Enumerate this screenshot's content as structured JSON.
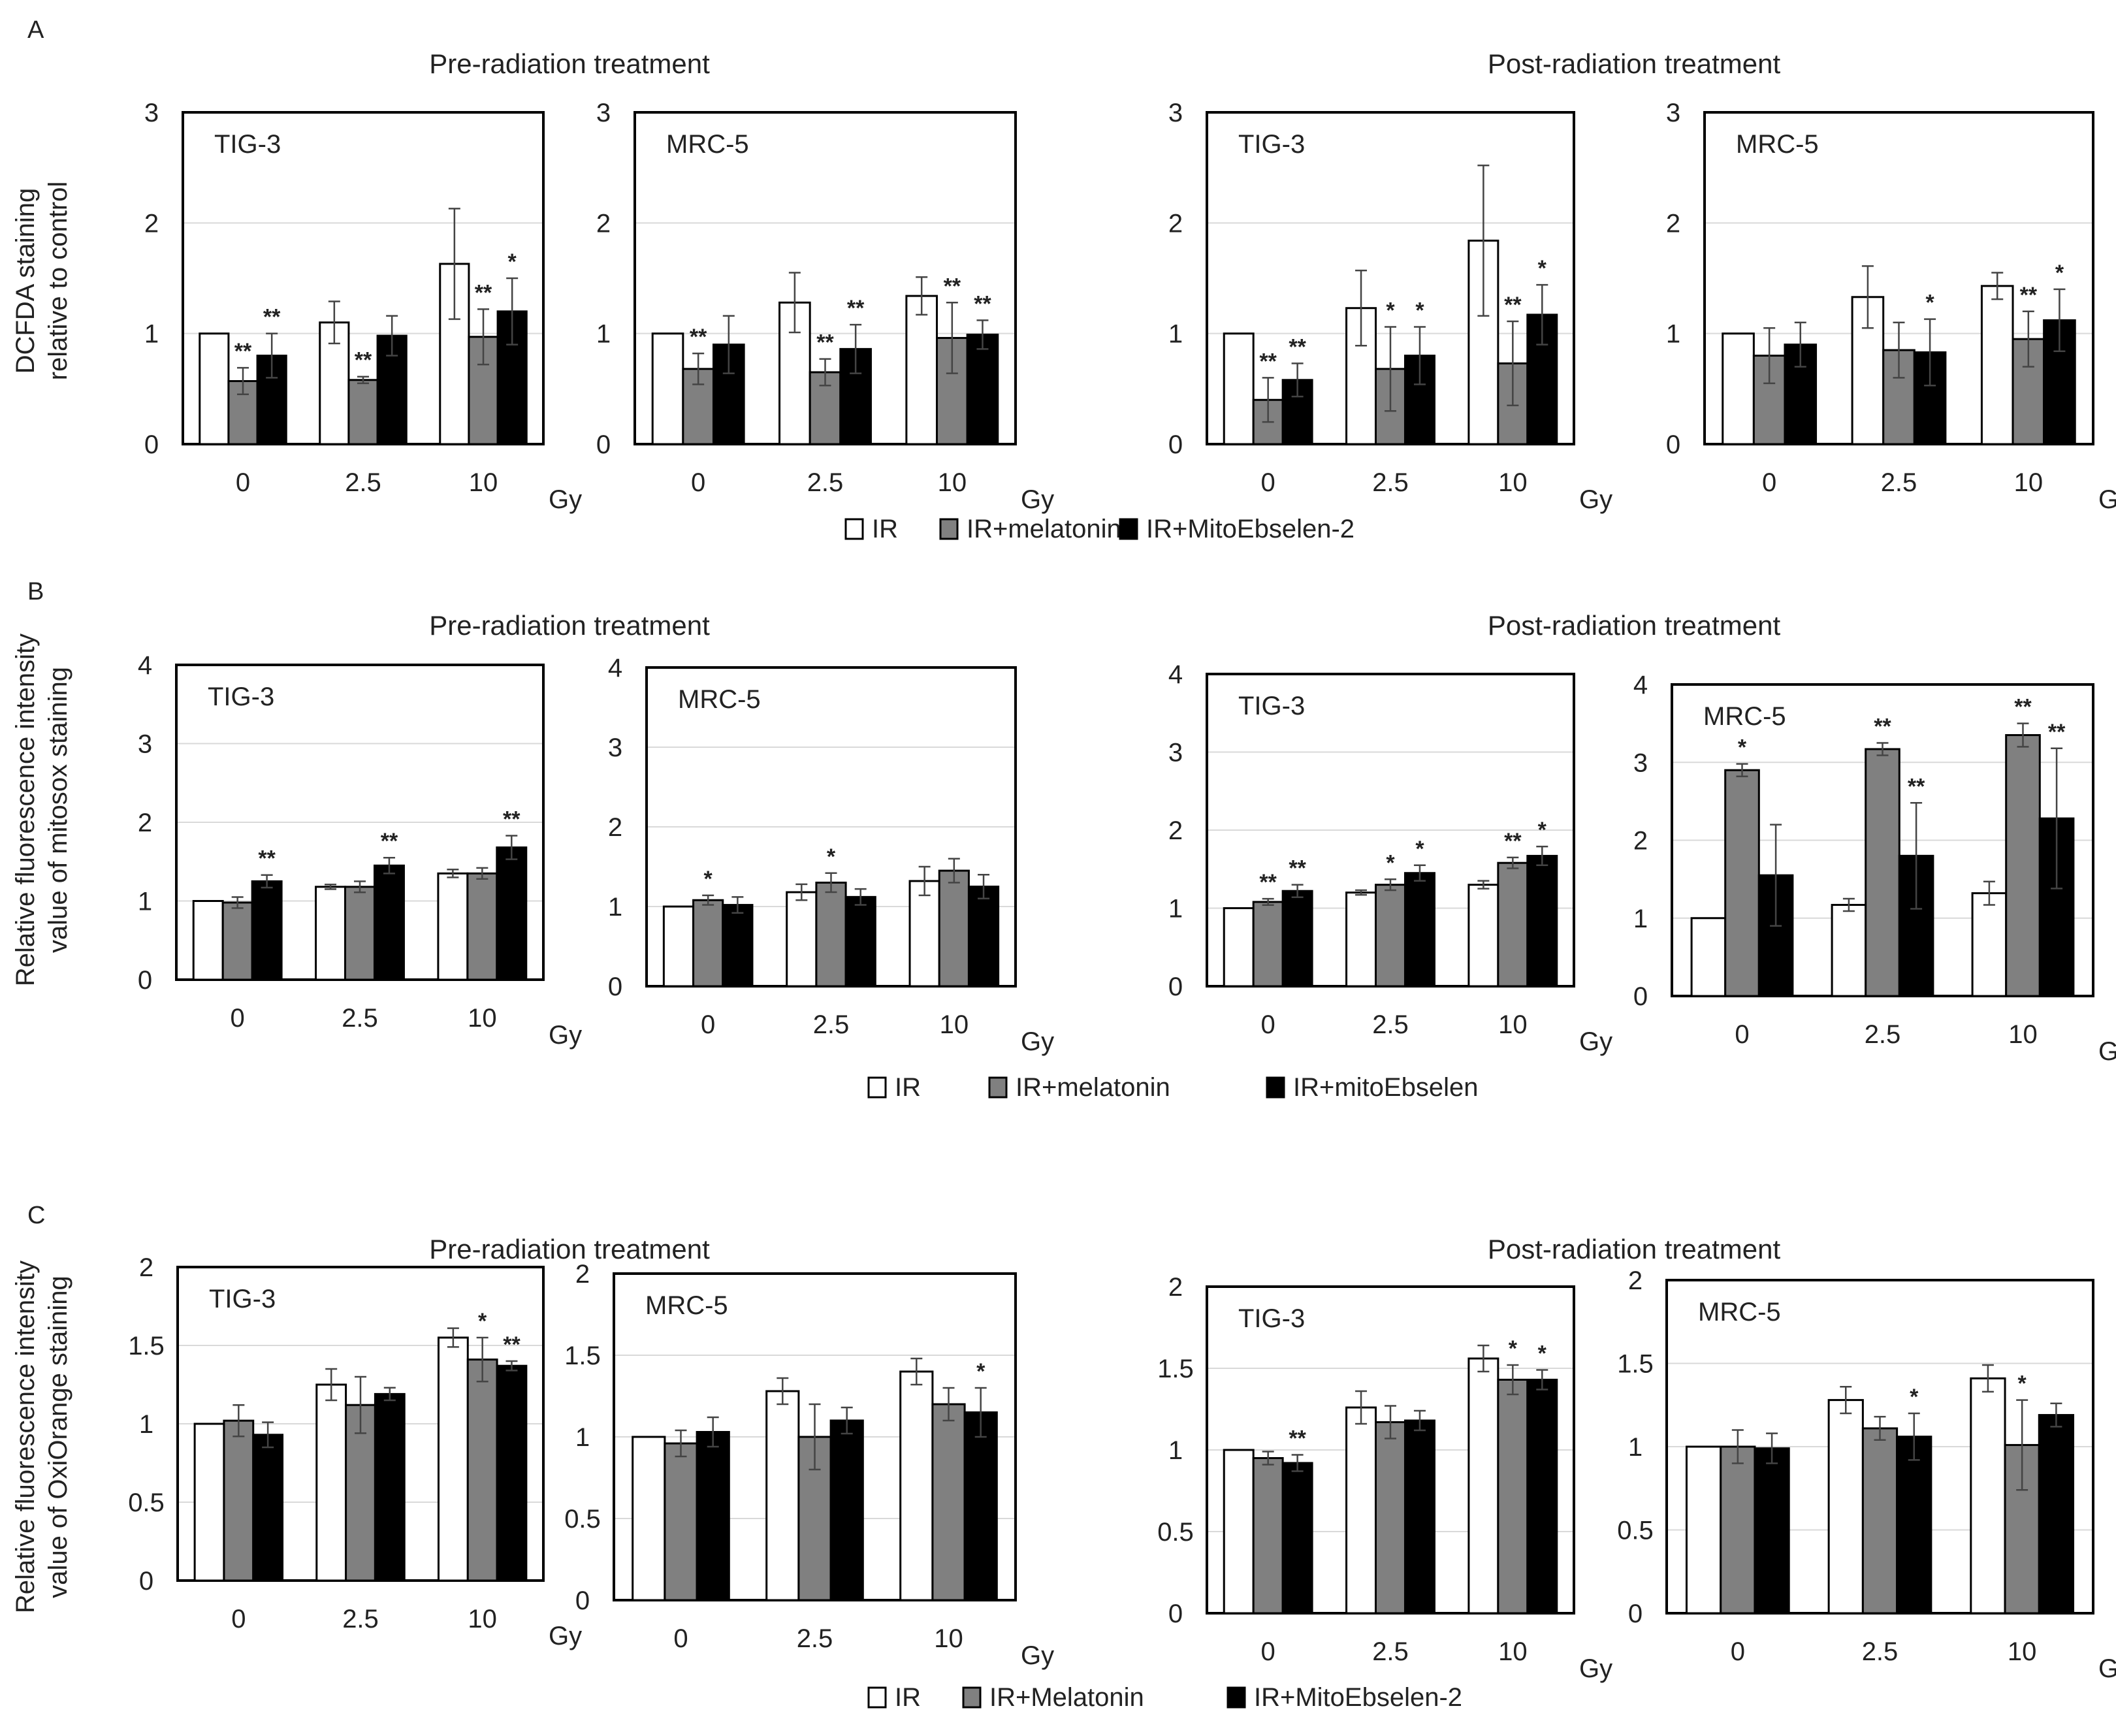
{
  "panels": [
    {
      "letter": "A",
      "ylabel": [
        "DCFDA staining",
        "relative to control"
      ],
      "legend": [
        "IR",
        "IR+melatonin",
        "IR+MitoEbselen-2"
      ],
      "section_titles": [
        "Pre-radiation treatment",
        "Post-radiation treatment"
      ]
    },
    {
      "letter": "B",
      "ylabel": [
        "Relative fluorescence intensity",
        "value of mitosox staining"
      ],
      "legend": [
        "IR",
        "IR+melatonin",
        "IR+mitoEbselen"
      ],
      "section_titles": [
        "Pre-radiation treatment",
        "Post-radiation treatment"
      ]
    },
    {
      "letter": "C",
      "ylabel": [
        "Relative fluorescence intensity",
        "value of OxiOrange staining"
      ],
      "legend": [
        "IR",
        "IR+Melatonin",
        "IR+MitoEbselen-2"
      ],
      "section_titles": [
        "Pre-radiation treatment",
        "Post-radiation treatment"
      ]
    }
  ],
  "colors": {
    "ir": "#ffffff",
    "melatonin": "#808080",
    "mito": "#000000",
    "grid": "#d9d9d9"
  },
  "x_unit": "Gy",
  "chart_data": [
    {
      "id": "A1",
      "panel": "A",
      "type": "bar",
      "title": "TIG-3",
      "section": "Pre-radiation treatment",
      "categories": [
        "0",
        "2.5",
        "10"
      ],
      "ylim": [
        0,
        3
      ],
      "yticks": [
        "0",
        "1",
        "2",
        "3"
      ],
      "series": [
        {
          "name": "IR",
          "values": [
            1.0,
            1.1,
            1.63
          ],
          "errors": [
            0,
            0.19,
            0.5
          ],
          "stars": [
            "",
            "",
            ""
          ]
        },
        {
          "name": "IR+melatonin",
          "values": [
            0.57,
            0.58,
            0.97
          ],
          "errors": [
            0.12,
            0.03,
            0.25
          ],
          "stars": [
            "**",
            "**",
            "**"
          ]
        },
        {
          "name": "IR+MitoEbselen-2",
          "values": [
            0.8,
            0.98,
            1.2
          ],
          "errors": [
            0.2,
            0.18,
            0.3
          ],
          "stars": [
            "**",
            "",
            "*"
          ]
        }
      ]
    },
    {
      "id": "A2",
      "panel": "A",
      "type": "bar",
      "title": "MRC-5",
      "section": "Pre-radiation treatment",
      "categories": [
        "0",
        "2.5",
        "10"
      ],
      "ylim": [
        0,
        3
      ],
      "yticks": [
        "0",
        "1",
        "2",
        "3"
      ],
      "series": [
        {
          "name": "IR",
          "values": [
            1.0,
            1.28,
            1.34
          ],
          "errors": [
            0,
            0.27,
            0.17
          ],
          "stars": [
            "",
            "",
            ""
          ]
        },
        {
          "name": "IR+melatonin",
          "values": [
            0.68,
            0.65,
            0.96
          ],
          "errors": [
            0.14,
            0.12,
            0.32
          ],
          "stars": [
            "**",
            "**",
            "**"
          ]
        },
        {
          "name": "IR+MitoEbselen-2",
          "values": [
            0.9,
            0.86,
            0.99
          ],
          "errors": [
            0.26,
            0.22,
            0.13
          ],
          "stars": [
            "",
            "**",
            "**"
          ]
        }
      ]
    },
    {
      "id": "A3",
      "panel": "A",
      "type": "bar",
      "title": "TIG-3",
      "section": "Post-radiation treatment",
      "categories": [
        "0",
        "2.5",
        "10"
      ],
      "ylim": [
        0,
        3
      ],
      "yticks": [
        "0",
        "1",
        "2",
        "3"
      ],
      "series": [
        {
          "name": "IR",
          "values": [
            1.0,
            1.23,
            1.84
          ],
          "errors": [
            0,
            0.34,
            0.68
          ],
          "stars": [
            "",
            "",
            ""
          ]
        },
        {
          "name": "IR+melatonin",
          "values": [
            0.4,
            0.68,
            0.73
          ],
          "errors": [
            0.2,
            0.38,
            0.38
          ],
          "stars": [
            "**",
            "*",
            "**"
          ]
        },
        {
          "name": "IR+MitoEbselen-2",
          "values": [
            0.58,
            0.8,
            1.17
          ],
          "errors": [
            0.15,
            0.26,
            0.27
          ],
          "stars": [
            "**",
            "*",
            "*"
          ]
        }
      ]
    },
    {
      "id": "A4",
      "panel": "A",
      "type": "bar",
      "title": "MRC-5",
      "section": "Post-radiation treatment",
      "categories": [
        "0",
        "2.5",
        "10"
      ],
      "ylim": [
        0,
        3
      ],
      "yticks": [
        "0",
        "1",
        "2",
        "3"
      ],
      "series": [
        {
          "name": "IR",
          "values": [
            1.0,
            1.33,
            1.43
          ],
          "errors": [
            0,
            0.28,
            0.12
          ],
          "stars": [
            "",
            "",
            ""
          ]
        },
        {
          "name": "IR+melatonin",
          "values": [
            0.8,
            0.85,
            0.95
          ],
          "errors": [
            0.25,
            0.25,
            0.25
          ],
          "stars": [
            "",
            "",
            "**"
          ]
        },
        {
          "name": "IR+MitoEbselen-2",
          "values": [
            0.9,
            0.83,
            1.12
          ],
          "errors": [
            0.2,
            0.3,
            0.28
          ],
          "stars": [
            "",
            "*",
            "*"
          ]
        }
      ]
    },
    {
      "id": "B1",
      "panel": "B",
      "type": "bar",
      "title": "TIG-3",
      "section": "Pre-radiation treatment",
      "categories": [
        "0",
        "2.5",
        "10"
      ],
      "ylim": [
        0,
        4
      ],
      "yticks": [
        "0",
        "1",
        "2",
        "3",
        "4"
      ],
      "series": [
        {
          "name": "IR",
          "values": [
            1.0,
            1.18,
            1.35
          ],
          "errors": [
            0,
            0.03,
            0.05
          ],
          "stars": [
            "",
            "",
            ""
          ]
        },
        {
          "name": "IR+melatonin",
          "values": [
            0.98,
            1.18,
            1.35
          ],
          "errors": [
            0.07,
            0.07,
            0.07
          ],
          "stars": [
            "",
            "",
            ""
          ]
        },
        {
          "name": "IR+mitoEbselen",
          "values": [
            1.25,
            1.45,
            1.68
          ],
          "errors": [
            0.08,
            0.1,
            0.15
          ],
          "stars": [
            "**",
            "**",
            "**"
          ]
        }
      ]
    },
    {
      "id": "B2",
      "panel": "B",
      "type": "bar",
      "title": "MRC-5",
      "section": "Pre-radiation treatment",
      "categories": [
        "0",
        "2.5",
        "10"
      ],
      "ylim": [
        0,
        4
      ],
      "yticks": [
        "0",
        "1",
        "2",
        "3",
        "4"
      ],
      "series": [
        {
          "name": "IR",
          "values": [
            1.0,
            1.18,
            1.32
          ],
          "errors": [
            0,
            0.1,
            0.18
          ],
          "stars": [
            "",
            "",
            ""
          ]
        },
        {
          "name": "IR+melatonin",
          "values": [
            1.08,
            1.3,
            1.45
          ],
          "errors": [
            0.06,
            0.12,
            0.15
          ],
          "stars": [
            "*",
            "*",
            ""
          ]
        },
        {
          "name": "IR+mitoEbselen",
          "values": [
            1.02,
            1.12,
            1.25
          ],
          "errors": [
            0.1,
            0.1,
            0.15
          ],
          "stars": [
            "",
            "",
            ""
          ]
        }
      ]
    },
    {
      "id": "B3",
      "panel": "B",
      "type": "bar",
      "title": "TIG-3",
      "section": "Post-radiation treatment",
      "categories": [
        "0",
        "2.5",
        "10"
      ],
      "ylim": [
        0,
        4
      ],
      "yticks": [
        "0",
        "1",
        "2",
        "3",
        "4"
      ],
      "series": [
        {
          "name": "IR",
          "values": [
            1.0,
            1.2,
            1.3
          ],
          "errors": [
            0,
            0.03,
            0.05
          ],
          "stars": [
            "",
            "",
            ""
          ]
        },
        {
          "name": "IR+melatonin",
          "values": [
            1.08,
            1.3,
            1.58
          ],
          "errors": [
            0.04,
            0.07,
            0.07
          ],
          "stars": [
            "**",
            "*",
            "**"
          ]
        },
        {
          "name": "IR+mitoEbselen",
          "values": [
            1.22,
            1.45,
            1.67
          ],
          "errors": [
            0.08,
            0.1,
            0.12
          ],
          "stars": [
            "**",
            "*",
            "*"
          ]
        }
      ]
    },
    {
      "id": "B4",
      "panel": "B",
      "type": "bar",
      "title": "MRC-5",
      "section": "Post-radiation treatment",
      "categories": [
        "0",
        "2.5",
        "10"
      ],
      "ylim": [
        0,
        4
      ],
      "yticks": [
        "0",
        "1",
        "2",
        "3",
        "4"
      ],
      "series": [
        {
          "name": "IR",
          "values": [
            1.0,
            1.17,
            1.32
          ],
          "errors": [
            0,
            0.08,
            0.15
          ],
          "stars": [
            "",
            "",
            ""
          ]
        },
        {
          "name": "IR+melatonin",
          "values": [
            2.9,
            3.17,
            3.35
          ],
          "errors": [
            0.08,
            0.08,
            0.15
          ],
          "stars": [
            "*",
            "**",
            "**"
          ]
        },
        {
          "name": "IR+mitoEbselen",
          "values": [
            1.55,
            1.8,
            2.28
          ],
          "errors": [
            0.65,
            0.68,
            0.9
          ],
          "stars": [
            "",
            "**",
            "**"
          ]
        }
      ]
    },
    {
      "id": "C1",
      "panel": "C",
      "type": "bar",
      "title": "TIG-3",
      "section": "Pre-radiation treatment",
      "categories": [
        "0",
        "2.5",
        "10"
      ],
      "ylim": [
        0,
        2
      ],
      "yticks": [
        "0",
        "0.5",
        "1",
        "1.5",
        "2"
      ],
      "series": [
        {
          "name": "IR",
          "values": [
            1.0,
            1.25,
            1.55
          ],
          "errors": [
            0,
            0.1,
            0.06
          ],
          "stars": [
            "",
            "",
            ""
          ]
        },
        {
          "name": "IR+Melatonin",
          "values": [
            1.02,
            1.12,
            1.41
          ],
          "errors": [
            0.1,
            0.18,
            0.14
          ],
          "stars": [
            "",
            "",
            "*"
          ]
        },
        {
          "name": "IR+MitoEbselen-2",
          "values": [
            0.93,
            1.19,
            1.37
          ],
          "errors": [
            0.08,
            0.04,
            0.03
          ],
          "stars": [
            "",
            "",
            "**"
          ]
        }
      ]
    },
    {
      "id": "C2",
      "panel": "C",
      "type": "bar",
      "title": "MRC-5",
      "section": "Pre-radiation treatment",
      "categories": [
        "0",
        "2.5",
        "10"
      ],
      "ylim": [
        0,
        2
      ],
      "yticks": [
        "0",
        "0.5",
        "1",
        "1.5",
        "2"
      ],
      "series": [
        {
          "name": "IR",
          "values": [
            1.0,
            1.28,
            1.4
          ],
          "errors": [
            0,
            0.08,
            0.08
          ],
          "stars": [
            "",
            "",
            ""
          ]
        },
        {
          "name": "IR+Melatonin",
          "values": [
            0.96,
            1.0,
            1.2
          ],
          "errors": [
            0.08,
            0.2,
            0.1
          ],
          "stars": [
            "",
            "",
            ""
          ]
        },
        {
          "name": "IR+MitoEbselen-2",
          "values": [
            1.03,
            1.1,
            1.15
          ],
          "errors": [
            0.09,
            0.08,
            0.15
          ],
          "stars": [
            "",
            "",
            "*"
          ]
        }
      ]
    },
    {
      "id": "C3",
      "panel": "C",
      "type": "bar",
      "title": "TIG-3",
      "section": "Post-radiation treatment",
      "categories": [
        "0",
        "2.5",
        "10"
      ],
      "ylim": [
        0,
        2
      ],
      "yticks": [
        "0",
        "0.5",
        "1",
        "1.5",
        "2"
      ],
      "series": [
        {
          "name": "IR",
          "values": [
            1.0,
            1.26,
            1.56
          ],
          "errors": [
            0,
            0.1,
            0.08
          ],
          "stars": [
            "",
            "",
            ""
          ]
        },
        {
          "name": "IR+Melatonin",
          "values": [
            0.95,
            1.17,
            1.43
          ],
          "errors": [
            0.04,
            0.1,
            0.09
          ],
          "stars": [
            "",
            "",
            "*"
          ]
        },
        {
          "name": "IR+MitoEbselen-2",
          "values": [
            0.92,
            1.18,
            1.43
          ],
          "errors": [
            0.05,
            0.06,
            0.06
          ],
          "stars": [
            "**",
            "",
            "*"
          ]
        }
      ]
    },
    {
      "id": "C4",
      "panel": "C",
      "type": "bar",
      "title": "MRC-5",
      "section": "Post-radiation treatment",
      "categories": [
        "0",
        "2.5",
        "10"
      ],
      "ylim": [
        0,
        2
      ],
      "yticks": [
        "0",
        "0.5",
        "1",
        "1.5",
        "2"
      ],
      "series": [
        {
          "name": "IR",
          "values": [
            1.0,
            1.28,
            1.41
          ],
          "errors": [
            0,
            0.08,
            0.08
          ],
          "stars": [
            "",
            "",
            ""
          ]
        },
        {
          "name": "IR+Melatonin",
          "values": [
            1.0,
            1.11,
            1.01
          ],
          "errors": [
            0.1,
            0.07,
            0.27
          ],
          "stars": [
            "",
            "",
            "*"
          ]
        },
        {
          "name": "IR+MitoEbselen-2",
          "values": [
            0.99,
            1.06,
            1.19
          ],
          "errors": [
            0.09,
            0.14,
            0.07
          ],
          "stars": [
            "",
            "*",
            ""
          ]
        }
      ]
    }
  ]
}
